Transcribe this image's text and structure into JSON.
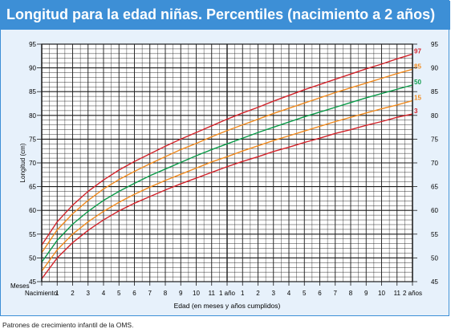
{
  "title": "Longitud para la edad niñas. Percentiles (nacimiento a 2 años)",
  "footnote": "Patrones de crecimiento infantil de la OMS.",
  "colors": {
    "frame": "#3d8fd6",
    "panel": "#e7f1fb",
    "grid": "#1a1a1a",
    "red": "#d2232a",
    "orange": "#f08a1e",
    "green": "#0a9a48"
  },
  "chart_data": {
    "type": "line",
    "title": "Longitud para la edad niñas. Percentiles (nacimiento a 2 años)",
    "xlabel": "Edad (en meses y años cumplidos)",
    "ylabel": "Longitud (cm)",
    "xlim": [
      0,
      24
    ],
    "ylim": [
      45,
      95
    ],
    "y_ticks": [
      45,
      50,
      55,
      60,
      65,
      70,
      75,
      80,
      85,
      90,
      95
    ],
    "x_tick_labels": [
      "Nacimiento",
      "1",
      "2",
      "3",
      "4",
      "5",
      "6",
      "7",
      "8",
      "9",
      "10",
      "11",
      "1 año",
      "1",
      "2",
      "3",
      "4",
      "5",
      "6",
      "7",
      "8",
      "9",
      "10",
      "11",
      "2 años"
    ],
    "x_prefix_label": "Meses",
    "grid": true,
    "x": [
      0,
      1,
      2,
      3,
      4,
      5,
      6,
      7,
      8,
      9,
      10,
      11,
      12,
      13,
      14,
      15,
      16,
      17,
      18,
      19,
      20,
      21,
      22,
      23,
      24
    ],
    "series": [
      {
        "name": "97",
        "color": "#d2232a",
        "values": [
          52.7,
          57.6,
          61.1,
          64.0,
          66.4,
          68.5,
          70.3,
          71.9,
          73.5,
          75.0,
          76.4,
          77.8,
          79.2,
          80.5,
          81.7,
          83.0,
          84.2,
          85.4,
          86.5,
          87.6,
          88.7,
          89.8,
          90.8,
          91.9,
          92.9
        ]
      },
      {
        "name": "85",
        "color": "#f08a1e",
        "values": [
          51.1,
          55.9,
          59.3,
          62.1,
          64.5,
          66.5,
          68.2,
          69.8,
          71.3,
          72.8,
          74.1,
          75.5,
          76.8,
          78.0,
          79.2,
          80.4,
          81.5,
          82.6,
          83.7,
          84.8,
          85.8,
          86.8,
          87.8,
          88.8,
          89.7
        ]
      },
      {
        "name": "50",
        "color": "#0a9a48",
        "values": [
          49.1,
          53.7,
          57.1,
          59.8,
          62.1,
          64.0,
          65.7,
          67.3,
          68.7,
          70.1,
          71.5,
          72.8,
          74.0,
          75.2,
          76.4,
          77.5,
          78.6,
          79.7,
          80.7,
          81.7,
          82.7,
          83.7,
          84.6,
          85.5,
          86.4
        ]
      },
      {
        "name": "15",
        "color": "#f08a1e",
        "values": [
          47.2,
          51.7,
          55.0,
          57.6,
          59.8,
          61.7,
          63.4,
          64.9,
          66.3,
          67.6,
          68.9,
          70.2,
          71.3,
          72.5,
          73.6,
          74.7,
          75.7,
          76.7,
          77.7,
          78.7,
          79.6,
          80.5,
          81.4,
          82.2,
          83.1
        ]
      },
      {
        "name": "3",
        "color": "#d2232a",
        "values": [
          45.6,
          50.0,
          53.2,
          55.8,
          58.0,
          59.9,
          61.5,
          62.9,
          64.3,
          65.6,
          66.8,
          68.0,
          69.2,
          70.3,
          71.3,
          72.4,
          73.3,
          74.3,
          75.2,
          76.2,
          77.0,
          77.9,
          78.7,
          79.6,
          80.3
        ]
      }
    ]
  }
}
